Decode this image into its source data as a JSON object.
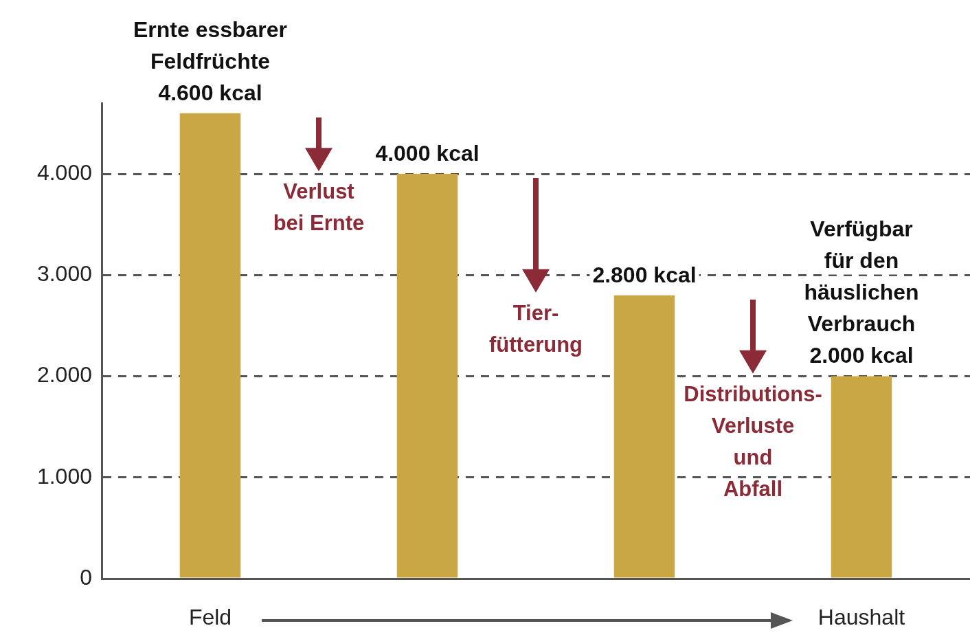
{
  "chart_data": {
    "type": "bar",
    "categories": [
      null,
      null,
      null,
      null
    ],
    "values": [
      4600,
      4000,
      2800,
      2000
    ],
    "color": "#c9a745",
    "value_labels": [
      "Ernte essbarer\nFeldfrüchte\n4.600 kcal",
      "4.000 kcal",
      "2.800 kcal",
      "Verfügbar\nfür den\nhäuslichen\nVerbrauch\n2.000 kcal"
    ],
    "annotations": [
      "Verlust\nbei Ernte",
      "Tier-\nfütterung",
      "Distributions-\nVerluste\nund\nAbfall",
      "Feld",
      "Haushalt"
    ],
    "ylim": [
      0,
      4700
    ],
    "yticks": [
      0,
      {
        "value": 1000,
        "label": "1.000"
      },
      {
        "value": 2000,
        "label": "2.000"
      },
      {
        "value": 3000,
        "label": "3.000"
      },
      {
        "value": 4000,
        "label": "4.000"
      }
    ],
    "grid": "y",
    "tick_labels": "y",
    "legend": false
  }
}
